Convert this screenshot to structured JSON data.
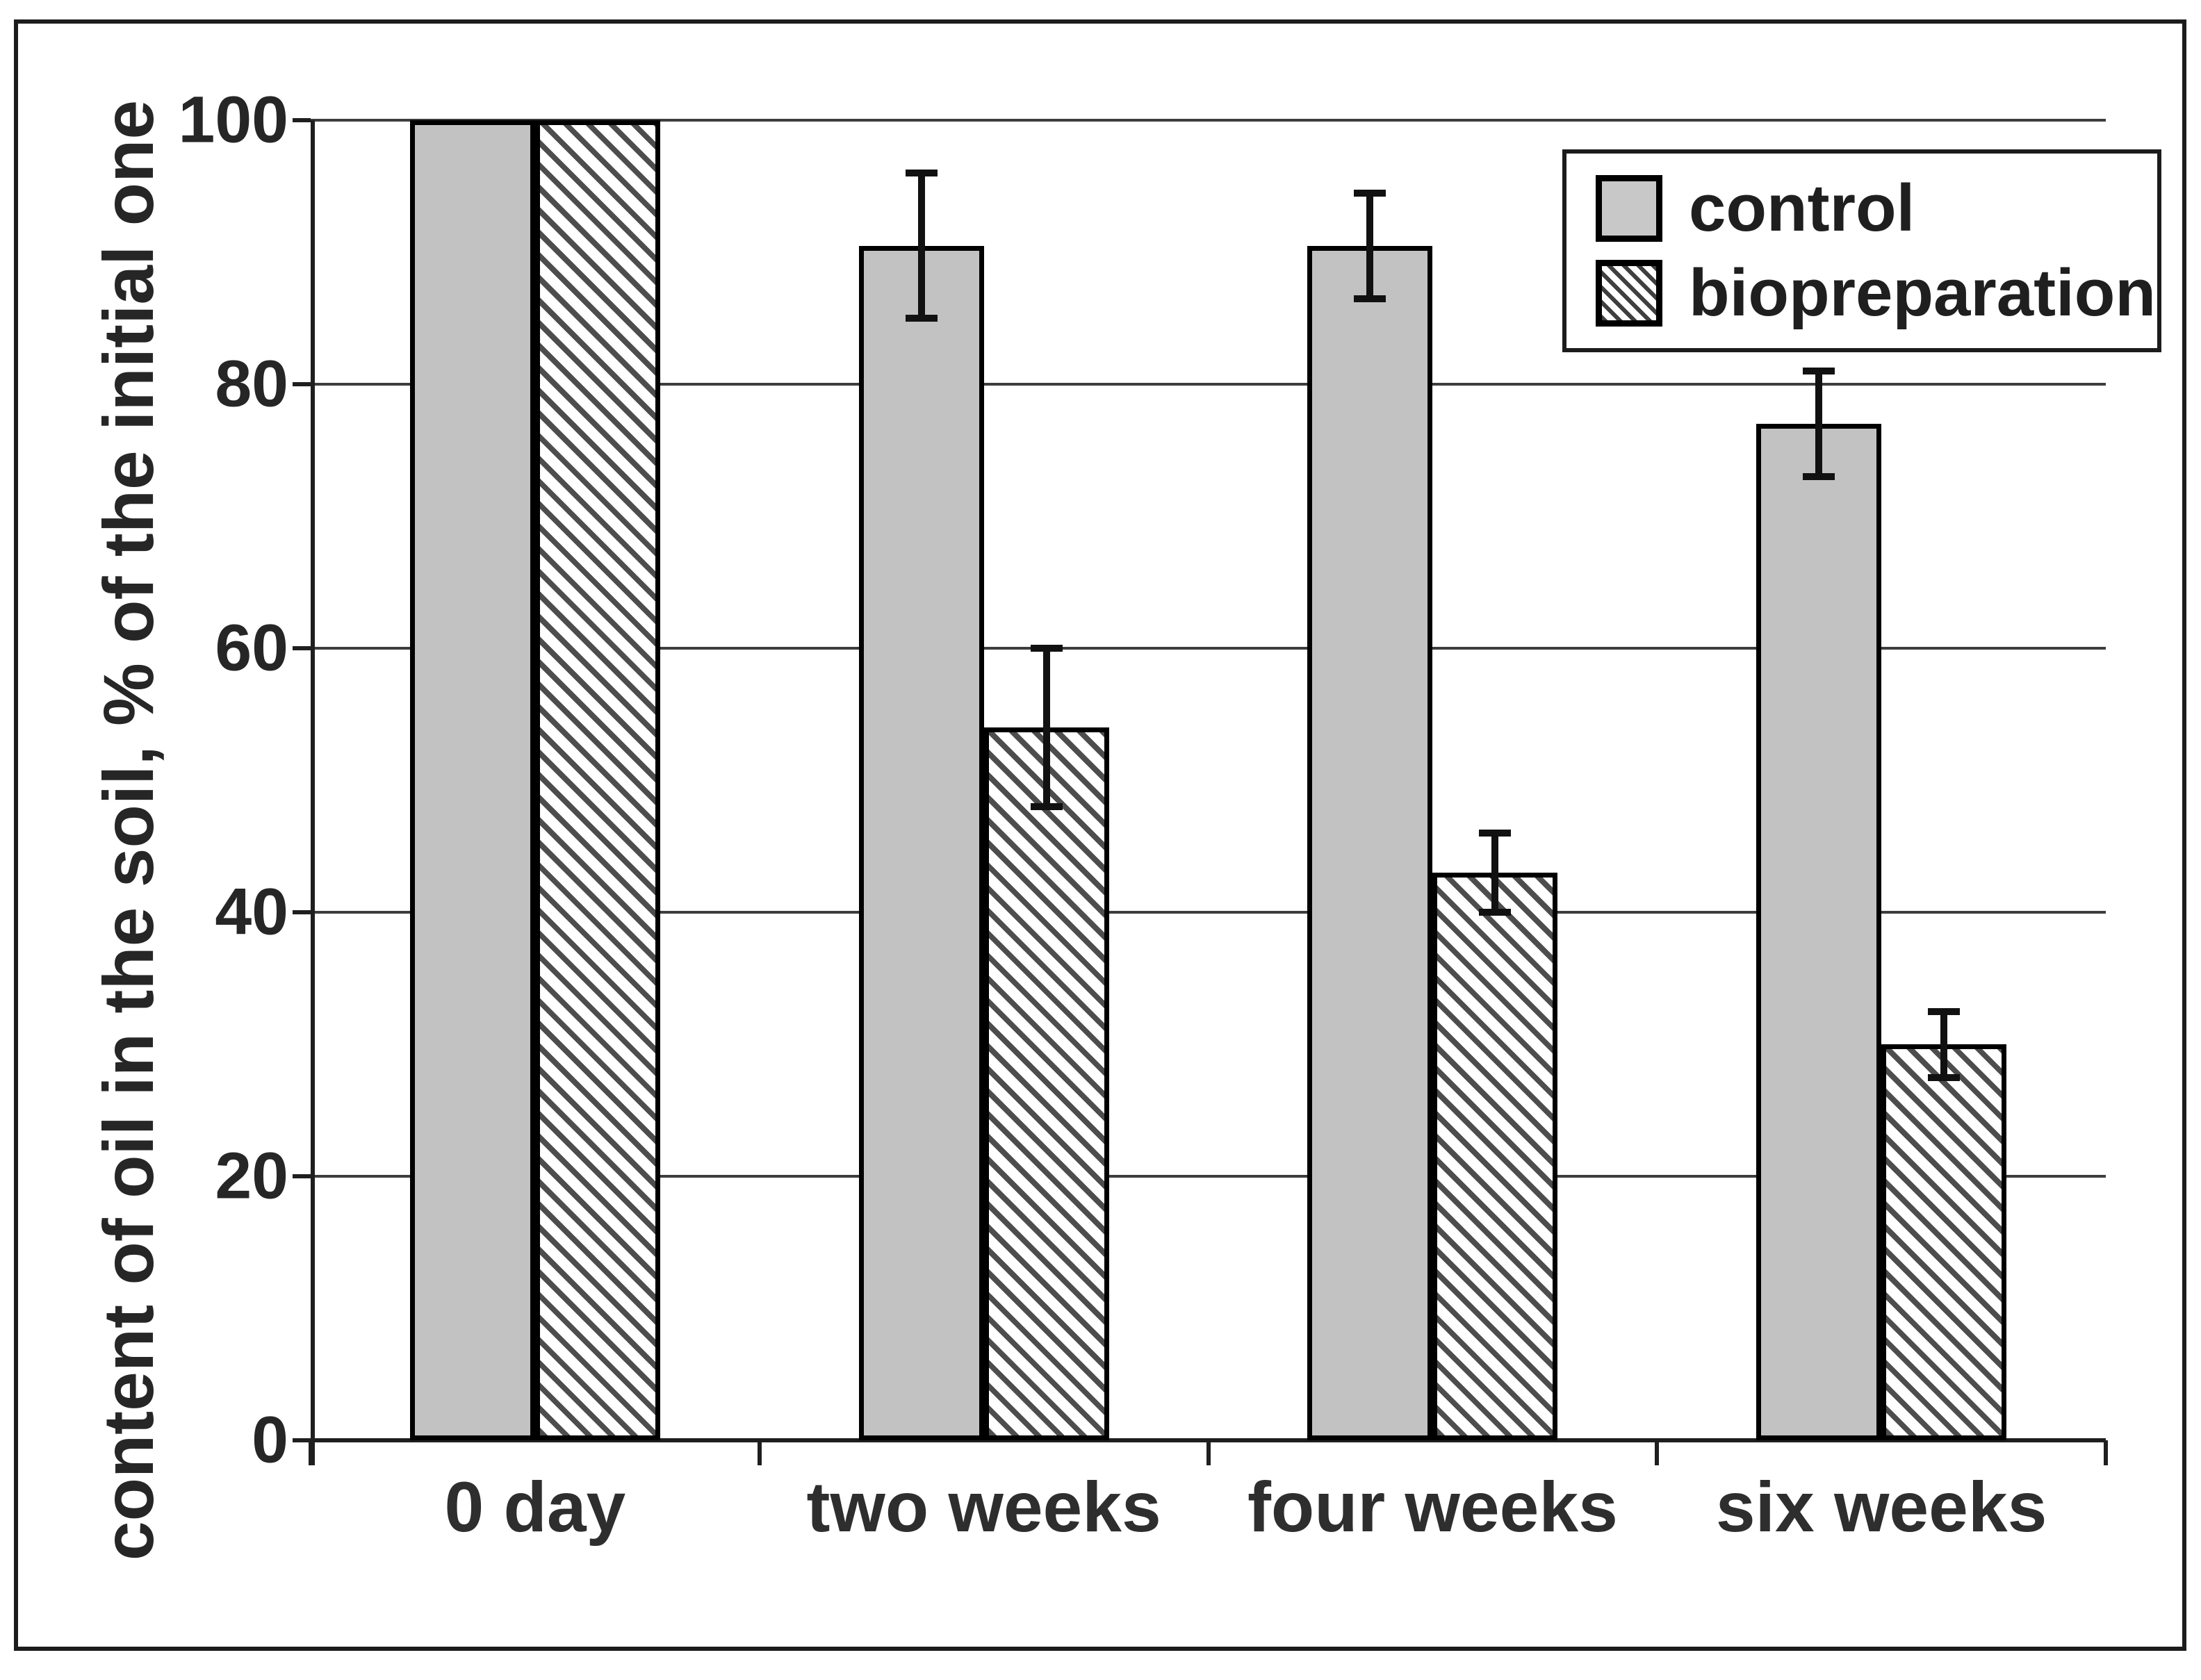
{
  "chart_data": {
    "type": "bar",
    "title": "",
    "xlabel": "",
    "ylabel": "content of oil in the soil, % of the initial one",
    "categories": [
      "0 day",
      "two weeks",
      "four weeks",
      "six weeks"
    ],
    "series": [
      {
        "name": "control",
        "style": "solid-gray",
        "values": [
          100,
          90.5,
          90.5,
          77
        ],
        "errors": [
          0,
          5.5,
          4,
          4
        ]
      },
      {
        "name": "biopreparation",
        "style": "hatched",
        "values": [
          100,
          54,
          43,
          30
        ],
        "errors": [
          0,
          6,
          3,
          2.5
        ]
      }
    ],
    "ylim": [
      0,
      100
    ],
    "yticks": [
      0,
      20,
      40,
      60,
      80,
      100
    ],
    "grid": true,
    "legend_position": "top-right"
  },
  "colors": {
    "bar_fill_gray": "#c2c2c2",
    "hatch_stripe": "#4d4d4d",
    "bar_border": "#000000",
    "gridline": "#3d3d3d",
    "axis": "#1f1f1f",
    "text": "#262626",
    "background": "#ffffff"
  }
}
